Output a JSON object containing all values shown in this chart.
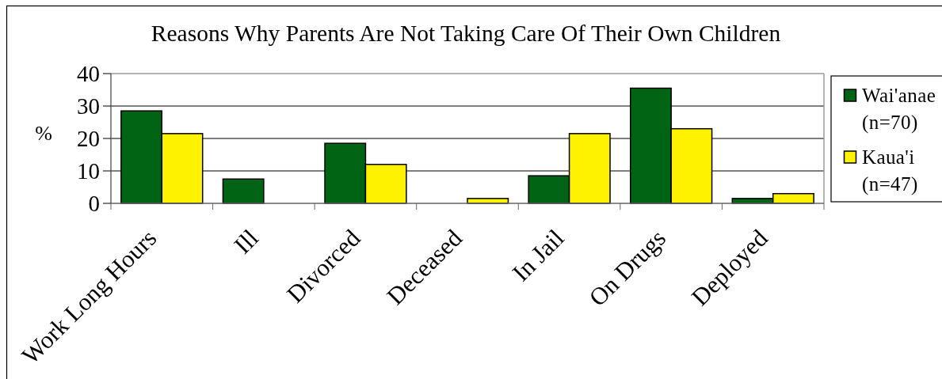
{
  "chart_data": {
    "type": "bar",
    "title": "Reasons Why Parents Are Not Taking Care Of Their Own Children",
    "ylabel": "%",
    "categories": [
      "Work Long Hours",
      "Ill",
      "Divorced",
      "Deceased",
      "In Jail",
      "On Drugs",
      "Deployed"
    ],
    "series": [
      {
        "name": "Wai'anae (n=70)",
        "color": "#006414",
        "values": [
          28.5,
          7.5,
          18.5,
          0,
          8.5,
          35.5,
          1.5
        ]
      },
      {
        "name": "Kaua'i (n=47)",
        "color": "#fff200",
        "values": [
          21.5,
          0,
          12,
          1.5,
          21.5,
          23,
          3
        ]
      }
    ],
    "ylim": [
      0,
      40
    ],
    "yticks": [
      0,
      10,
      20,
      30,
      40
    ],
    "grid": "y",
    "legend": "right"
  }
}
